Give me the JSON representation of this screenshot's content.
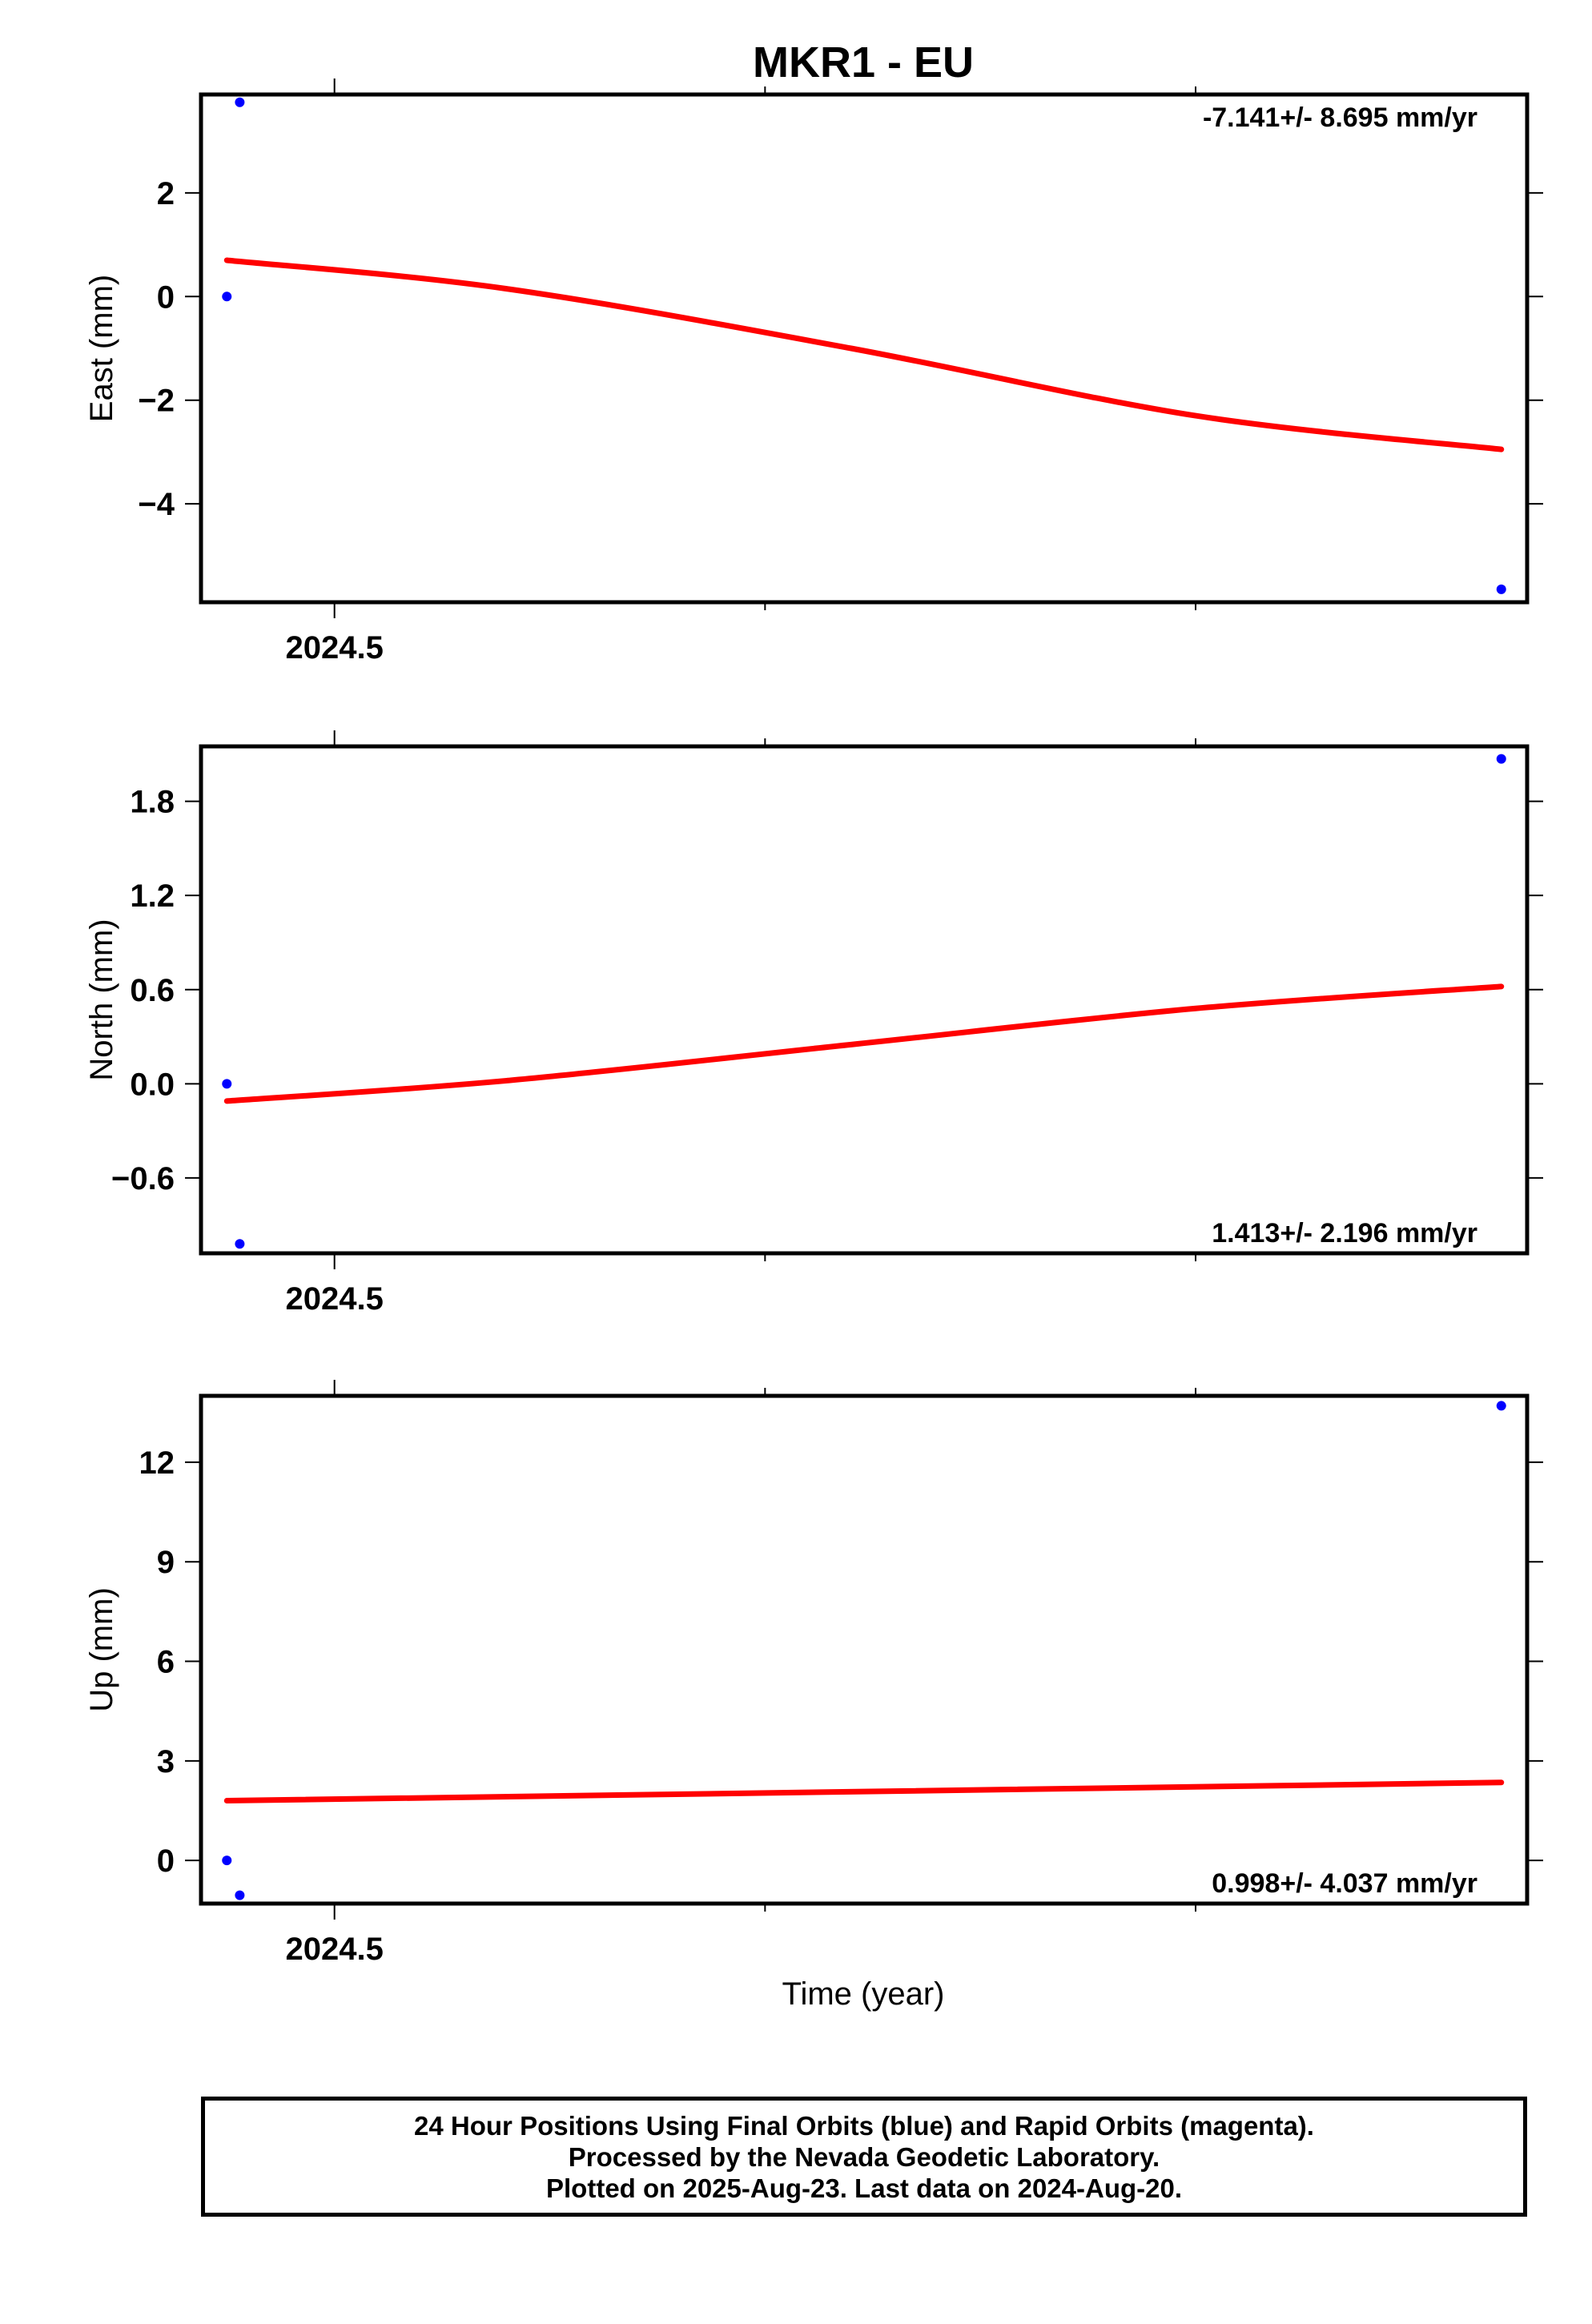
{
  "title": "MKR1 - EU",
  "xlabel": "Time (year)",
  "footer": {
    "line1": "24 Hour Positions Using Final Orbits (blue) and Rapid Orbits (magenta).",
    "line2": "Processed by the Nevada Geodetic Laboratory.",
    "line3": "Plotted on 2025-Aug-23. Last data on 2024-Aug-20."
  },
  "colors": {
    "points": "#0000ff",
    "fit": "#ff0000",
    "frame": "#000000"
  },
  "chart_data": [
    {
      "type": "scatter",
      "ylabel": "East (mm)",
      "rate_text": "-7.141+/- 8.695 mm/yr",
      "rate_position": "top-right",
      "xlim": [
        2024.4845,
        2024.6385
      ],
      "ylim": [
        -5.9,
        3.9
      ],
      "yticks": [
        2,
        0,
        -2,
        -4
      ],
      "ytick_labels": [
        "2",
        "0",
        "−2",
        "−4"
      ],
      "xticks": [
        2024.5
      ],
      "xtick_labels": [
        "2024.5"
      ],
      "points": [
        [
          2024.4875,
          0.0
        ],
        [
          2024.489,
          3.75
        ],
        [
          2024.6355,
          -5.65
        ]
      ],
      "fit": [
        [
          2024.4875,
          0.7
        ],
        [
          2024.52,
          0.15
        ],
        [
          2024.56,
          -1.0
        ],
        [
          2024.6,
          -2.3
        ],
        [
          2024.6355,
          -2.95
        ]
      ]
    },
    {
      "type": "scatter",
      "ylabel": "North (mm)",
      "rate_text": "1.413+/- 2.196 mm/yr",
      "rate_position": "bottom-right",
      "xlim": [
        2024.4845,
        2024.6385
      ],
      "ylim": [
        -1.08,
        2.15
      ],
      "yticks": [
        1.8,
        1.2,
        0.6,
        0.0,
        -0.6
      ],
      "ytick_labels": [
        "1.8",
        "1.2",
        "0.6",
        "0.0",
        "−0.6"
      ],
      "xticks": [
        2024.5
      ],
      "xtick_labels": [
        "2024.5"
      ],
      "points": [
        [
          2024.4875,
          0.0
        ],
        [
          2024.489,
          -1.02
        ],
        [
          2024.6355,
          2.07
        ]
      ],
      "fit": [
        [
          2024.4875,
          -0.11
        ],
        [
          2024.52,
          0.02
        ],
        [
          2024.56,
          0.25
        ],
        [
          2024.6,
          0.48
        ],
        [
          2024.6355,
          0.62
        ]
      ]
    },
    {
      "type": "scatter",
      "ylabel": "Up (mm)",
      "rate_text": "0.998+/- 4.037 mm/yr",
      "rate_position": "bottom-right",
      "xlim": [
        2024.4845,
        2024.6385
      ],
      "ylim": [
        -1.3,
        14.0
      ],
      "yticks": [
        12,
        9,
        6,
        3,
        0
      ],
      "ytick_labels": [
        "12",
        "9",
        "6",
        "3",
        "0"
      ],
      "xticks": [
        2024.5
      ],
      "xtick_labels": [
        "2024.5"
      ],
      "points": [
        [
          2024.4875,
          0.0
        ],
        [
          2024.489,
          -1.05
        ],
        [
          2024.6355,
          13.7
        ]
      ],
      "fit": [
        [
          2024.4875,
          1.8
        ],
        [
          2024.6355,
          2.35
        ]
      ]
    }
  ]
}
